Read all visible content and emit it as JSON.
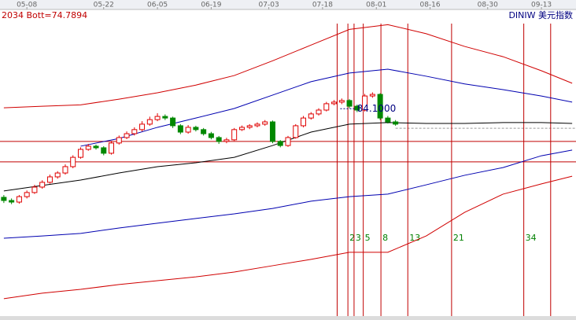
{
  "chart_data": {
    "type": "candlestick",
    "header_left": "2034 Bott=74.7894",
    "header_right": "DINIW 美元指数",
    "xlim": [
      -0.5,
      74.5
    ],
    "ylim": [
      74.8,
      88.4
    ],
    "xticks": [
      {
        "value": 3,
        "label": "05-08"
      },
      {
        "value": 13,
        "label": "05-22"
      },
      {
        "value": 20,
        "label": "06-05"
      },
      {
        "value": 27,
        "label": "06-19"
      },
      {
        "value": 34.5,
        "label": "07-03"
      },
      {
        "value": 41.5,
        "label": "07-18"
      },
      {
        "value": 48.5,
        "label": "08-01"
      },
      {
        "value": 55.5,
        "label": "08-16"
      },
      {
        "value": 63,
        "label": "08-30"
      },
      {
        "value": 70,
        "label": "09-13"
      }
    ],
    "up_color": "#e00000",
    "down_color": "#008800",
    "open": [
      80.2,
      80.06,
      79.99,
      80.23,
      80.41,
      80.65,
      80.86,
      81.1,
      81.27,
      81.55,
      81.96,
      82.31,
      82.45,
      82.38,
      82.14,
      82.59,
      82.83,
      83.0,
      83.18,
      83.42,
      83.62,
      83.76,
      83.69,
      83.35,
      83.07,
      83.28,
      83.18,
      83.0,
      82.83,
      82.66,
      82.73,
      83.18,
      83.28,
      83.35,
      83.42,
      83.52,
      82.66,
      82.48,
      82.83,
      83.35,
      83.69,
      83.87,
      84.04,
      84.32,
      84.39,
      84.46,
      84.21,
      84.04,
      84.66,
      84.73,
      83.69,
      83.52
    ],
    "high": [
      80.3,
      80.15,
      80.3,
      80.5,
      80.75,
      80.95,
      81.2,
      81.35,
      81.65,
      82.05,
      82.4,
      82.55,
      82.52,
      82.45,
      82.68,
      82.92,
      83.1,
      83.28,
      83.55,
      83.75,
      83.9,
      83.85,
      83.75,
      83.42,
      83.38,
      83.35,
      83.25,
      83.08,
      82.9,
      82.82,
      83.25,
      83.36,
      83.42,
      83.5,
      83.6,
      83.58,
      82.72,
      82.9,
      83.42,
      83.78,
      83.95,
      84.12,
      84.4,
      84.48,
      84.55,
      84.52,
      84.28,
      84.75,
      84.82,
      84.78,
      83.78,
      83.6
    ],
    "low": [
      79.95,
      79.9,
      79.92,
      80.15,
      80.35,
      80.58,
      80.8,
      81.02,
      81.2,
      81.48,
      81.9,
      82.25,
      82.3,
      82.05,
      82.08,
      82.52,
      82.76,
      82.92,
      83.1,
      83.35,
      83.55,
      83.6,
      83.25,
      82.98,
      83.0,
      83.1,
      82.92,
      82.75,
      82.55,
      82.58,
      82.68,
      83.12,
      83.2,
      83.28,
      83.35,
      82.58,
      82.4,
      82.42,
      82.78,
      83.28,
      83.62,
      83.8,
      83.98,
      84.25,
      84.3,
      84.12,
      83.95,
      83.98,
      84.58,
      83.6,
      83.45,
      83.35
    ],
    "close": [
      80.06,
      79.99,
      80.23,
      80.41,
      80.65,
      80.86,
      81.1,
      81.27,
      81.55,
      81.96,
      82.31,
      82.45,
      82.38,
      82.14,
      82.59,
      82.83,
      83.0,
      83.18,
      83.42,
      83.62,
      83.76,
      83.69,
      83.35,
      83.07,
      83.28,
      83.18,
      83.0,
      82.83,
      82.66,
      82.73,
      83.18,
      83.28,
      83.35,
      83.42,
      83.52,
      82.66,
      82.48,
      82.83,
      83.35,
      83.69,
      83.87,
      84.04,
      84.32,
      84.39,
      84.46,
      84.21,
      84.04,
      84.66,
      84.73,
      83.69,
      83.52,
      83.42
    ],
    "line_x": [
      0,
      5,
      10,
      15,
      20,
      25,
      30,
      35,
      40,
      45,
      50,
      55,
      60,
      65,
      70,
      74
    ],
    "series": [
      {
        "color": "#d00000",
        "values": [
          84.14,
          84.21,
          84.27,
          84.52,
          84.8,
          85.14,
          85.56,
          86.21,
          86.9,
          87.59,
          87.8,
          87.4,
          86.84,
          86.39,
          85.77,
          85.22
        ]
      },
      {
        "color": "#0000b0",
        "values": [
          null,
          null,
          82.45,
          82.79,
          83.28,
          83.69,
          84.11,
          84.7,
          85.29,
          85.67,
          85.84,
          85.53,
          85.19,
          84.94,
          84.66,
          84.39
        ]
      },
      {
        "color": "#000000",
        "values": [
          80.48,
          80.72,
          80.96,
          81.27,
          81.55,
          81.72,
          81.96,
          82.48,
          83.07,
          83.42,
          83.49,
          83.45,
          83.45,
          83.49,
          83.49,
          83.45
        ]
      },
      {
        "color": "#0000b0",
        "values": [
          78.4,
          78.5,
          78.61,
          78.85,
          79.06,
          79.27,
          79.47,
          79.71,
          80.03,
          80.23,
          80.34,
          80.75,
          81.17,
          81.51,
          82.03,
          82.28
        ]
      },
      {
        "color": "#d00000",
        "values": [
          75.74,
          75.98,
          76.15,
          76.36,
          76.53,
          76.7,
          76.91,
          77.19,
          77.47,
          77.78,
          77.78,
          78.5,
          79.54,
          80.34,
          80.79,
          81.13
        ]
      }
    ],
    "hlines": [
      {
        "value": 82.66,
        "color": "#c00000"
      },
      {
        "value": 81.76,
        "color": "#c00000"
      },
      {
        "value": 83.24,
        "color": "#999999",
        "dashed": true
      }
    ],
    "fib_lines": {
      "color": "#c00000",
      "x": [
        43.4,
        44.8,
        45.6,
        46.8,
        49.1,
        52.6,
        58.3,
        67.7,
        71.2
      ],
      "labels": [
        null,
        2,
        3,
        5,
        8,
        13,
        21,
        34,
        null
      ]
    },
    "annotation": {
      "value": 84.1,
      "label": "84.1000"
    }
  }
}
